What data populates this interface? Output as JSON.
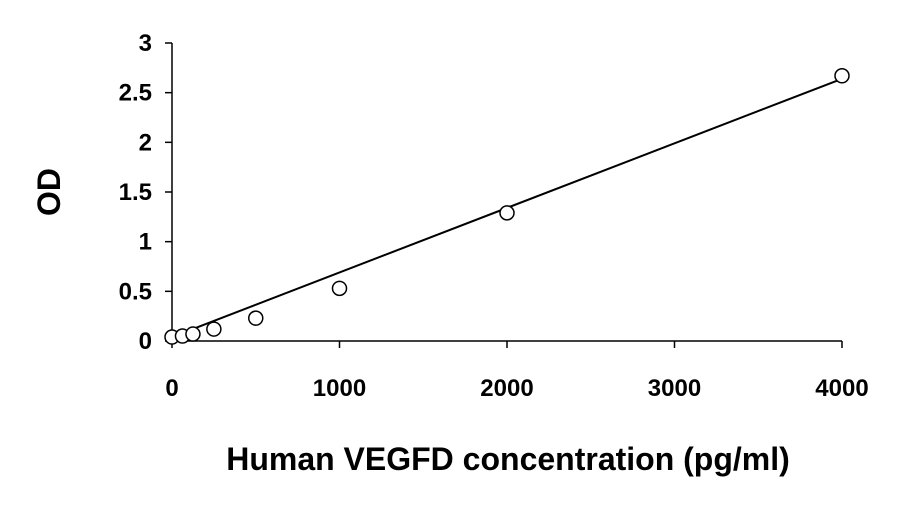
{
  "chart_data": {
    "type": "scatter",
    "xlabel": "Human VEGFD concentration (pg/ml)",
    "ylabel": "OD",
    "xlim": [
      0,
      4000
    ],
    "ylim": [
      0,
      3
    ],
    "xticks": [
      0,
      1000,
      2000,
      3000,
      4000
    ],
    "yticks": [
      0,
      0.5,
      1,
      1.5,
      2,
      2.5,
      3
    ],
    "xtick_labels": [
      "0",
      "1000",
      "2000",
      "3000",
      "4000"
    ],
    "ytick_labels": [
      "0",
      "0.5",
      "1",
      "1.5",
      "2",
      "2.5",
      "3"
    ],
    "grid": false,
    "legend": "none",
    "series": [
      {
        "marker": "open-circle",
        "x": [
          0,
          62.5,
          125,
          250,
          500,
          1000,
          2000,
          4000
        ],
        "y": [
          0.04,
          0.05,
          0.07,
          0.12,
          0.23,
          0.53,
          1.29,
          2.67
        ]
      }
    ],
    "trendline": {
      "type": "linear",
      "from": [
        0,
        0.04
      ],
      "to": [
        4000,
        2.64
      ]
    }
  }
}
